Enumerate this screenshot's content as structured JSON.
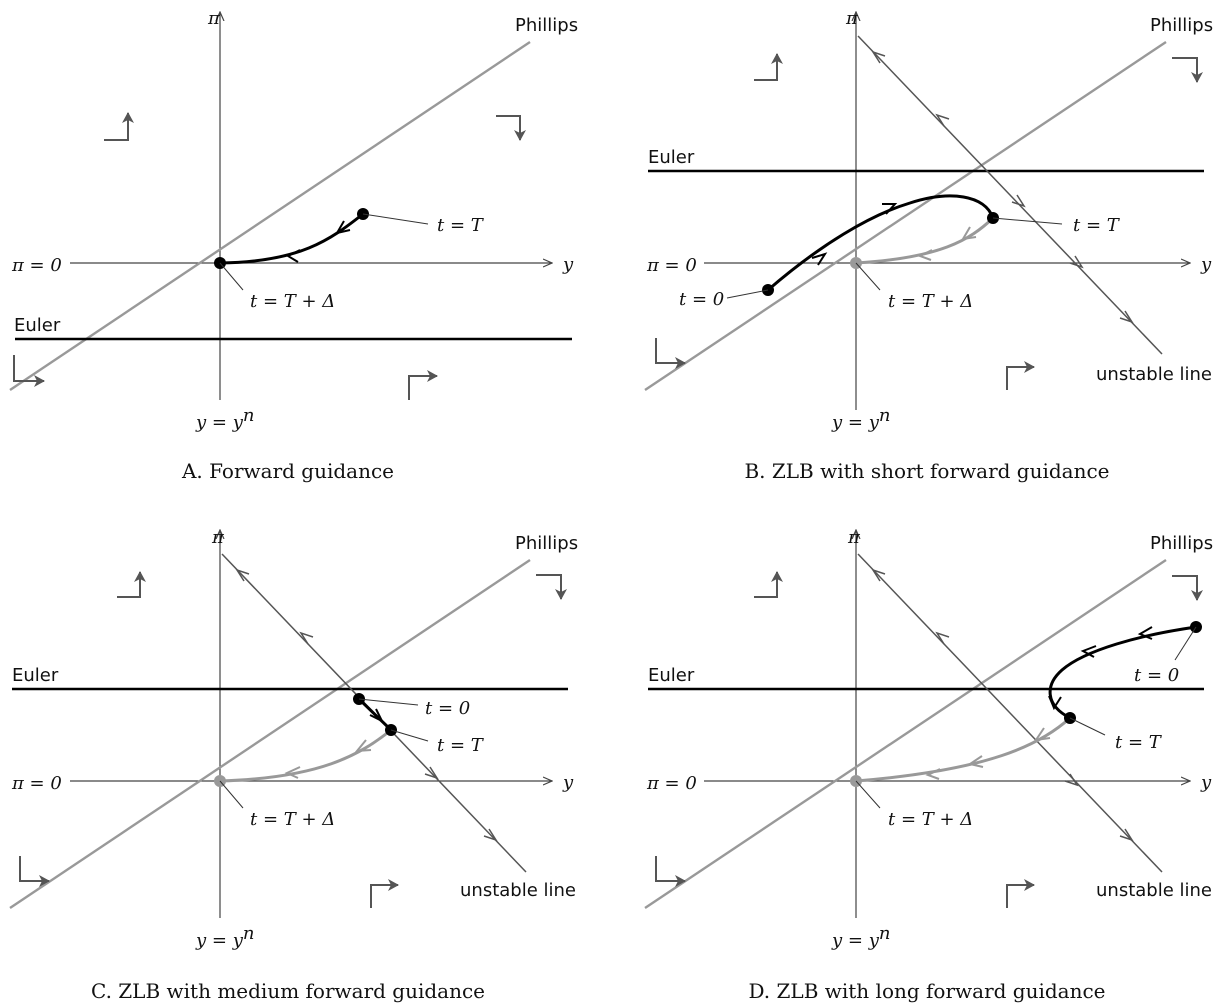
{
  "labels": {
    "pi_axis": "π",
    "y_axis": "y",
    "pi_zero": "π = 0",
    "y_natural": "y = y",
    "y_natural_sup": "n",
    "phillips": "Phillips",
    "euler": "Euler",
    "unstable_line": "unstable line",
    "t_T": "t = T",
    "t_T_delta": "t = T + Δ",
    "t_0": "t = 0"
  },
  "panels": [
    {
      "id": "A",
      "caption": "A. Forward guidance"
    },
    {
      "id": "B",
      "caption": "B. ZLB with short forward guidance"
    },
    {
      "id": "C",
      "caption": "C. ZLB with medium forward guidance"
    },
    {
      "id": "D",
      "caption": "D. ZLB with long forward guidance"
    }
  ],
  "colors": {
    "phillips": "#999999",
    "euler": "#000000",
    "axes": "#444444",
    "unstable": "#555555",
    "path_dark": "#000000",
    "path_grey": "#999999"
  },
  "icons": [
    "direction-arrow-icon",
    "arrowhead-icon",
    "equilibrium-dot-icon"
  ]
}
